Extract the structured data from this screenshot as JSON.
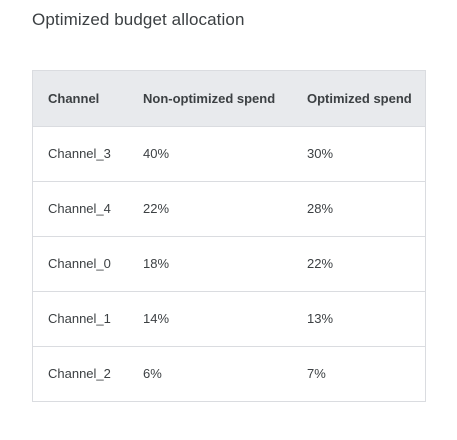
{
  "title": "Optimized budget allocation",
  "table": {
    "headers": [
      "Channel",
      "Non-optimized spend",
      "Optimized spend"
    ],
    "rows": [
      {
        "channel": "Channel_3",
        "non_optimized": "40%",
        "optimized": "30%"
      },
      {
        "channel": "Channel_4",
        "non_optimized": "22%",
        "optimized": "28%"
      },
      {
        "channel": "Channel_0",
        "non_optimized": "18%",
        "optimized": "22%"
      },
      {
        "channel": "Channel_1",
        "non_optimized": "14%",
        "optimized": "13%"
      },
      {
        "channel": "Channel_2",
        "non_optimized": "6%",
        "optimized": "7%"
      }
    ]
  }
}
